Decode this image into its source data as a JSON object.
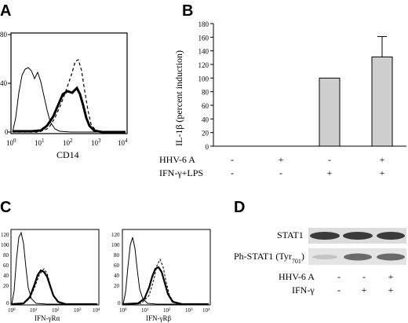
{
  "panel_labels": {
    "a": "A",
    "b": "B",
    "c": "C",
    "d": "D"
  },
  "panel_a": {
    "x_ticks": [
      {
        "base": "10",
        "exp": "0"
      },
      {
        "base": "10",
        "exp": "1"
      },
      {
        "base": "10",
        "exp": "2"
      },
      {
        "base": "10",
        "exp": "3"
      },
      {
        "base": "10",
        "exp": "4"
      }
    ],
    "y_ticks": [
      "0",
      "40",
      "80"
    ],
    "xlabel": "CD14"
  },
  "panel_c": {
    "x_ticks": [
      {
        "base": "10",
        "exp": "0"
      },
      {
        "base": "10",
        "exp": "1"
      },
      {
        "base": "10",
        "exp": "2"
      },
      {
        "base": "10",
        "exp": "3"
      },
      {
        "base": "10",
        "exp": "4"
      }
    ],
    "left": {
      "y_ticks": [
        "0",
        "20",
        "40",
        "60",
        "80",
        "100",
        "120"
      ],
      "xlabel": "IFN-γRα"
    },
    "right": {
      "y_ticks": [
        "0",
        "20",
        "40",
        "60",
        "80",
        "100",
        "120"
      ],
      "xlabel": "IFN-γRβ"
    }
  },
  "chart_data": {
    "type": "bar",
    "categories": [
      "-/-",
      "+/-",
      "-/+",
      "+/+"
    ],
    "values": [
      0,
      0,
      100,
      131
    ],
    "error_upper": [
      null,
      null,
      null,
      161
    ],
    "ylabel": "IL-1β (percent induction)",
    "ylim": [
      0,
      180
    ],
    "y_ticks": [
      "0",
      "20",
      "40",
      "60",
      "80",
      "100",
      "120",
      "140",
      "160",
      "180"
    ],
    "bar_color": "#cfcfcf"
  },
  "panel_b_table": {
    "rows": [
      {
        "label": "HHV-6 A",
        "cells": [
          "-",
          "+",
          "-",
          "+"
        ]
      },
      {
        "label": "IFN-γ+LPS",
        "cells": [
          "-",
          "-",
          "+",
          "+"
        ]
      }
    ]
  },
  "panel_d": {
    "stat1_label": "STAT1",
    "ph_stat1_prefix": "Ph-STAT1 (Tyr",
    "ph_stat1_sub": "701",
    "ph_stat1_suffix": ")",
    "rows": [
      {
        "label": "HHV-6 A",
        "cells": [
          "-",
          "-",
          "+"
        ]
      },
      {
        "label": "IFN-γ",
        "cells": [
          "-",
          "+",
          "+"
        ]
      }
    ]
  }
}
